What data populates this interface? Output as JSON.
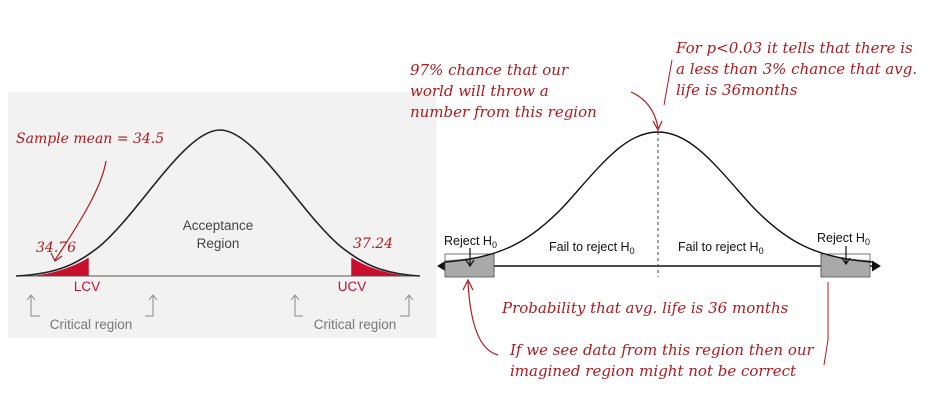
{
  "left_panel": {
    "annotation_sample_mean": "Sample mean = 34.5",
    "acceptance_line1": "Acceptance",
    "acceptance_line2": "Region",
    "lower_value": "34.76",
    "upper_value": "37.24",
    "lcv_label": "LCV",
    "ucv_label": "UCV",
    "critical_region_left": "Critical region",
    "critical_region_right": "Critical region"
  },
  "right_panel": {
    "reject_left": "Reject H",
    "reject_right": "Reject H",
    "fail_left": "Fail to reject H",
    "fail_right": "Fail to reject H",
    "subscript": "0",
    "annotation_97_line1": "97% chance that our",
    "annotation_97_line2": "world will throw a",
    "annotation_97_line3": "number from this region",
    "annotation_p_line1": "For p<0.03 it tells that there is",
    "annotation_p_line2": "a less than 3% chance that avg.",
    "annotation_p_line3": "life is 36months",
    "annotation_probability": "Probability that avg. life is 36 months",
    "annotation_bottom_line1": "If we see data from this region then our",
    "annotation_bottom_line2": "imagined region might not be correct"
  },
  "colors": {
    "critical_fill": "#c8102e",
    "annotation": "#b0191e",
    "tail_fill": "#a9a9a9"
  }
}
